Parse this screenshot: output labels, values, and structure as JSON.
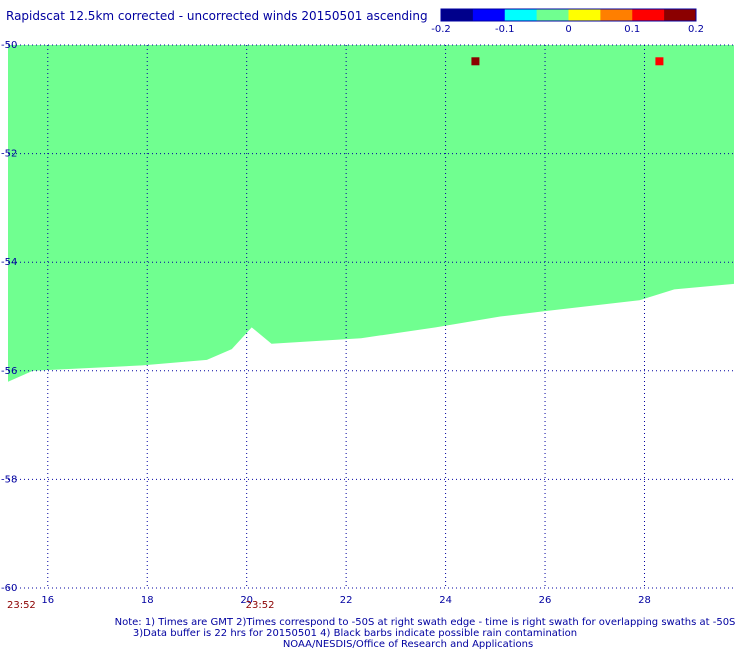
{
  "chart_data": {
    "type": "heatmap",
    "title": "Rapidscat 12.5km corrected - uncorrected winds 20150501 ascending",
    "xlabel": "",
    "ylabel": "",
    "x_range": [
      15.2,
      29.8
    ],
    "y_range": [
      -50,
      -60
    ],
    "x_ticks": [
      "16",
      "18",
      "20",
      "22",
      "24",
      "26",
      "28"
    ],
    "y_ticks": [
      "-50",
      "-52",
      "-54",
      "-56",
      "-58",
      "-60"
    ],
    "x_tick_values": [
      16,
      18,
      20,
      22,
      24,
      26,
      28
    ],
    "y_tick_values": [
      -50,
      -52,
      -54,
      -56,
      -58,
      -60
    ],
    "colorbar": {
      "min": -0.2,
      "max": 0.2,
      "ticks": [
        "-0.2",
        "-0.1",
        "0",
        "0.1",
        "0.2"
      ],
      "colors": [
        "#00008b",
        "#0000ff",
        "#00ffff",
        "#70ff90",
        "#ffff00",
        "#ff7f00",
        "#ff0000",
        "#8b0000"
      ]
    },
    "background_value": 0,
    "background_color": "#70ff90",
    "swath_lower_edge": [
      {
        "lon": 15.2,
        "lat": -56.2
      },
      {
        "lon": 15.7,
        "lat": -56.0
      },
      {
        "lon": 17.9,
        "lat": -55.9
      },
      {
        "lon": 19.2,
        "lat": -55.8
      },
      {
        "lon": 19.7,
        "lat": -55.6
      },
      {
        "lon": 20.1,
        "lat": -55.2
      },
      {
        "lon": 20.5,
        "lat": -55.5
      },
      {
        "lon": 22.3,
        "lat": -55.4
      },
      {
        "lon": 23.8,
        "lat": -55.2
      },
      {
        "lon": 25.1,
        "lat": -55.0
      },
      {
        "lon": 26.0,
        "lat": -54.9
      },
      {
        "lon": 27.9,
        "lat": -54.7
      },
      {
        "lon": 28.6,
        "lat": -54.5
      },
      {
        "lon": 29.8,
        "lat": -54.4
      }
    ],
    "cells": [
      {
        "lon": 24.6,
        "lat": -50.3,
        "value": 0.2
      },
      {
        "lon": 28.3,
        "lat": -50.3,
        "value": 0.14
      }
    ],
    "times": [
      {
        "lon": 15.3,
        "label": "23:52"
      },
      {
        "lon": 20.1,
        "label": "23:52"
      }
    ],
    "grid": true,
    "legend": "top-right colorbar"
  },
  "notes": [
    "Note: 1) Times are GMT 2)Times correspond to -50S at right swath edge - time is right swath for overlapping swaths at -50S",
    "3)Data buffer is 22 hrs for 20150501 4) Black barbs indicate possible rain contamination",
    "NOAA/NESDIS/Office of Research and Applications"
  ]
}
